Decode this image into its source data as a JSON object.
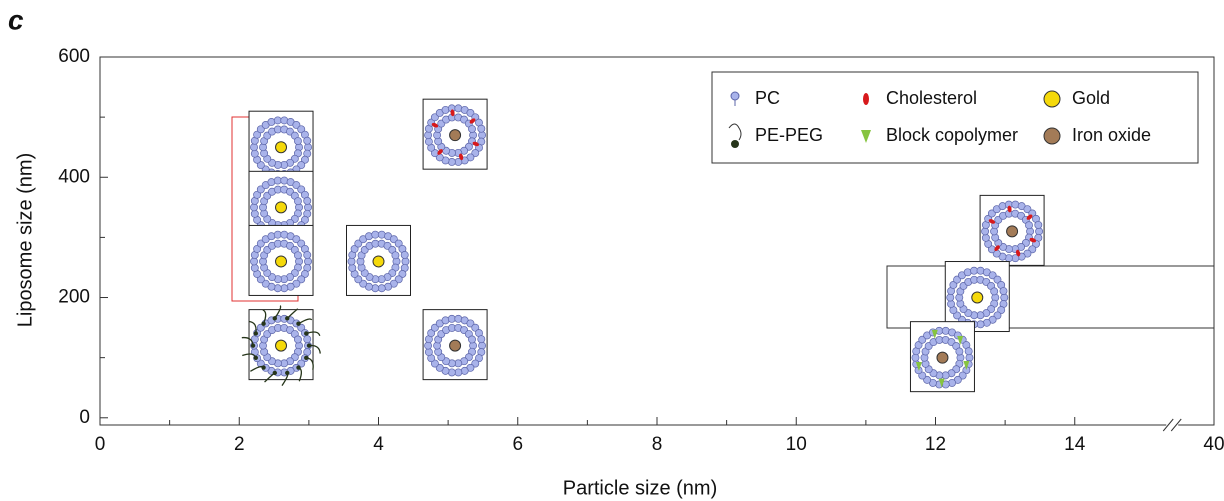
{
  "chart_data": {
    "type": "scatter",
    "panel_label": "c",
    "x_label": "Particle size (nm)",
    "y_label": "Liposome size (nm)",
    "xlim": [
      0,
      40
    ],
    "xbreak": [
      15.4,
      39.4
    ],
    "ylim": [
      -12,
      600
    ],
    "xticks": [
      0,
      2,
      4,
      6,
      8,
      10,
      12,
      14,
      40
    ],
    "xminorticks": [
      1,
      3,
      5,
      7,
      9,
      11,
      13
    ],
    "yticks": [
      0,
      200,
      400,
      600
    ],
    "yminorticks": [
      100,
      300,
      500
    ],
    "series": [
      {
        "name": "PC",
        "color": "#a9b3ea",
        "x": [
          2.6,
          2.6,
          2.6,
          2.6,
          4.0,
          5.1,
          5.1,
          13.1,
          12.6,
          12.1
        ],
        "values": [
          450,
          350,
          260,
          120,
          260,
          470,
          120,
          310,
          200,
          100
        ]
      },
      {
        "name": "Cholesterol",
        "color": "#d7191c",
        "x": [
          5.1,
          13.1
        ],
        "values": [
          470,
          310
        ]
      },
      {
        "name": "Gold",
        "color": "#f5d90a",
        "x": [
          2.6,
          2.6,
          2.6,
          2.6,
          4.0,
          12.6
        ],
        "values": [
          450,
          350,
          260,
          120,
          260,
          200
        ]
      },
      {
        "name": "PE-PEG",
        "color": "#26351a",
        "x": [
          2.6
        ],
        "values": [
          120
        ]
      },
      {
        "name": "Block copolymer",
        "color": "#86c440",
        "x": [
          12.1
        ],
        "values": [
          100
        ]
      },
      {
        "name": "Iron oxide",
        "color": "#a37b57",
        "x": [
          5.1,
          5.1,
          13.1,
          12.1
        ],
        "values": [
          470,
          120,
          310,
          100
        ]
      }
    ]
  }
}
